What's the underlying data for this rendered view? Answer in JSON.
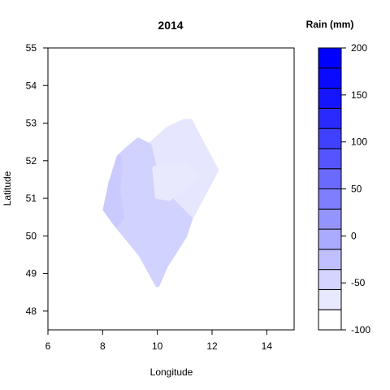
{
  "chart_data": {
    "type": "heatmap",
    "title": "2014",
    "xlabel": "Longitude",
    "ylabel": "Latitude",
    "xlim": [
      6,
      15
    ],
    "ylim": [
      47.5,
      55
    ],
    "xticks": [
      "6",
      "8",
      "10",
      "12",
      "14"
    ],
    "yticks": [
      "48",
      "49",
      "50",
      "51",
      "52",
      "53",
      "54",
      "55"
    ],
    "grid": false,
    "legend": {
      "title": "Rain (mm)",
      "range": [
        -100,
        200
      ],
      "tick_labels": [
        "200",
        "150",
        "100",
        "50",
        "0",
        "-50",
        "-100"
      ],
      "placement": "right",
      "bin_colors": [
        "#ffffff",
        "#e8e8ff",
        "#d4d4ff",
        "#c0c0ff",
        "#aaaaff",
        "#9494ff",
        "#7e7eff",
        "#6a6aff",
        "#5555ff",
        "#4040ff",
        "#2a2aff",
        "#1515ff",
        "#0a0aff",
        "#0000ff"
      ]
    },
    "regions": [
      {
        "value": -60,
        "color": "#e6e6fe",
        "outline": [
          [
            11.2,
            53.05
          ],
          [
            12.15,
            51.75
          ],
          [
            11.2,
            50.45
          ],
          [
            10.45,
            51.0
          ],
          [
            9.9,
            51.8
          ],
          [
            9.7,
            52.4
          ],
          [
            10.4,
            52.85
          ],
          [
            11.0,
            53.05
          ]
        ]
      },
      {
        "value": -35,
        "color": "#d2d2fe",
        "outline": [
          [
            9.7,
            52.4
          ],
          [
            9.9,
            51.8
          ],
          [
            10.45,
            51.0
          ],
          [
            11.2,
            50.45
          ],
          [
            11.0,
            50.0
          ],
          [
            10.3,
            49.2
          ],
          [
            10.0,
            48.7
          ],
          [
            9.4,
            49.5
          ],
          [
            8.5,
            50.3
          ],
          [
            8.1,
            50.7
          ],
          [
            8.3,
            51.4
          ],
          [
            8.6,
            52.1
          ],
          [
            8.9,
            52.3
          ],
          [
            9.3,
            52.55
          ]
        ]
      },
      {
        "value": -30,
        "color": "#cacafe",
        "outline": [
          [
            8.1,
            50.7
          ],
          [
            8.5,
            50.3
          ],
          [
            8.7,
            50.5
          ],
          [
            8.55,
            51.2
          ],
          [
            8.65,
            51.8
          ],
          [
            8.6,
            52.1
          ],
          [
            8.3,
            51.4
          ]
        ]
      },
      {
        "value": -55,
        "color": "#e9e9fe",
        "outline": [
          [
            11.4,
            51.6
          ],
          [
            11.1,
            51.4
          ],
          [
            10.6,
            51.1
          ],
          [
            10.45,
            51.0
          ],
          [
            10.0,
            51.05
          ],
          [
            9.9,
            51.8
          ],
          [
            11.0,
            51.85
          ]
        ]
      }
    ]
  }
}
